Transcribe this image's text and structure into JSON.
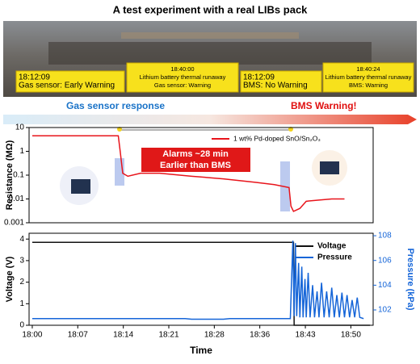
{
  "title": "A test experiment with a real LIBs pack",
  "photo_labels": [
    [
      "18:12:09",
      "Gas sensor: Early Warning"
    ],
    [
      "18:40:00",
      "Lithium battery thermal runaway",
      "Gas sensor: Warning"
    ],
    [
      "18:12:09",
      "BMS: No Warning"
    ],
    [
      "18:40:24",
      "Lithium battery thermal runaway",
      "BMS: Warning"
    ]
  ],
  "banner": {
    "left": "Gas sensor response",
    "right": "BMS Warning!"
  },
  "chart_data": [
    {
      "type": "line",
      "ylabel": "Resistance (MΩ)",
      "ylog": true,
      "xlim": [
        -0.5,
        53.5
      ],
      "ylim": [
        0.001,
        10
      ],
      "yticks": [
        0.001,
        0.01,
        0.1,
        1,
        10
      ],
      "annotation": [
        "Alarms ~28 min",
        "Earlier than BMS"
      ],
      "series": [
        {
          "name": "1 wt% Pd-doped SnO/Sn₂O₃",
          "color": "#e8141b",
          "x": [
            0,
            13.5,
            13.8,
            14.2,
            15,
            17,
            20,
            25,
            30,
            35,
            38,
            40.3,
            40.6,
            41,
            42,
            43,
            45,
            47,
            49
          ],
          "values": [
            4.5,
            4.5,
            1,
            0.12,
            0.09,
            0.12,
            0.12,
            0.09,
            0.07,
            0.05,
            0.04,
            0.03,
            0.005,
            0.003,
            0.004,
            0.008,
            0.009,
            0.01,
            0.01
          ]
        }
      ]
    },
    {
      "type": "line",
      "xlabel": "Time",
      "ylabel": "Voltage (V)",
      "y2label": "Pressure (kPa)",
      "xlim": [
        -0.5,
        53.5
      ],
      "ylim": [
        0,
        4.27
      ],
      "yticks": [
        0,
        1,
        2,
        3,
        4
      ],
      "y2lim": [
        100.76,
        108.2
      ],
      "y2ticks": [
        102,
        104,
        106,
        108
      ],
      "xticks": [
        {
          "value": 0,
          "label": "18:00"
        },
        {
          "value": 7.14,
          "label": "18:07"
        },
        {
          "value": 14.29,
          "label": "18:14"
        },
        {
          "value": 21.43,
          "label": "18:21"
        },
        {
          "value": 28.57,
          "label": "18:28"
        },
        {
          "value": 35.71,
          "label": "18:36"
        },
        {
          "value": 42.86,
          "label": "18:43"
        },
        {
          "value": 50,
          "label": "18:50"
        }
      ],
      "series": [
        {
          "name": "Voltage",
          "color": "#111111",
          "x": [
            0,
            41,
            41.1,
            53
          ],
          "values": [
            3.85,
            3.85,
            0,
            0
          ]
        },
        {
          "name": "Pressure",
          "color": "#1565d8",
          "axis": "y2",
          "x": [
            0,
            24,
            25,
            30,
            31,
            40.5,
            40.9,
            41.1,
            41.3,
            41.5,
            41.8,
            42.0,
            42.3,
            42.5,
            42.8,
            43,
            43.3,
            43.6,
            44,
            44.3,
            44.7,
            45,
            45.4,
            45.8,
            46.2,
            46.6,
            47,
            47.4,
            47.8,
            48.2,
            48.6,
            49,
            49.4,
            49.8,
            50.2,
            50.6,
            51,
            51.4,
            52
          ],
          "values": [
            101.3,
            101.3,
            101.25,
            101.25,
            101.3,
            101.3,
            107.6,
            101.5,
            107.4,
            101.5,
            105.8,
            101.4,
            105.5,
            101.4,
            104.5,
            101.4,
            105,
            101.4,
            104,
            101.4,
            103.5,
            101.4,
            104.2,
            101.4,
            103.5,
            101.4,
            103.8,
            101.4,
            103.2,
            101.4,
            103.4,
            101.4,
            103.2,
            101.4,
            102.8,
            101.4,
            103,
            101.4,
            101.3
          ]
        }
      ]
    }
  ]
}
